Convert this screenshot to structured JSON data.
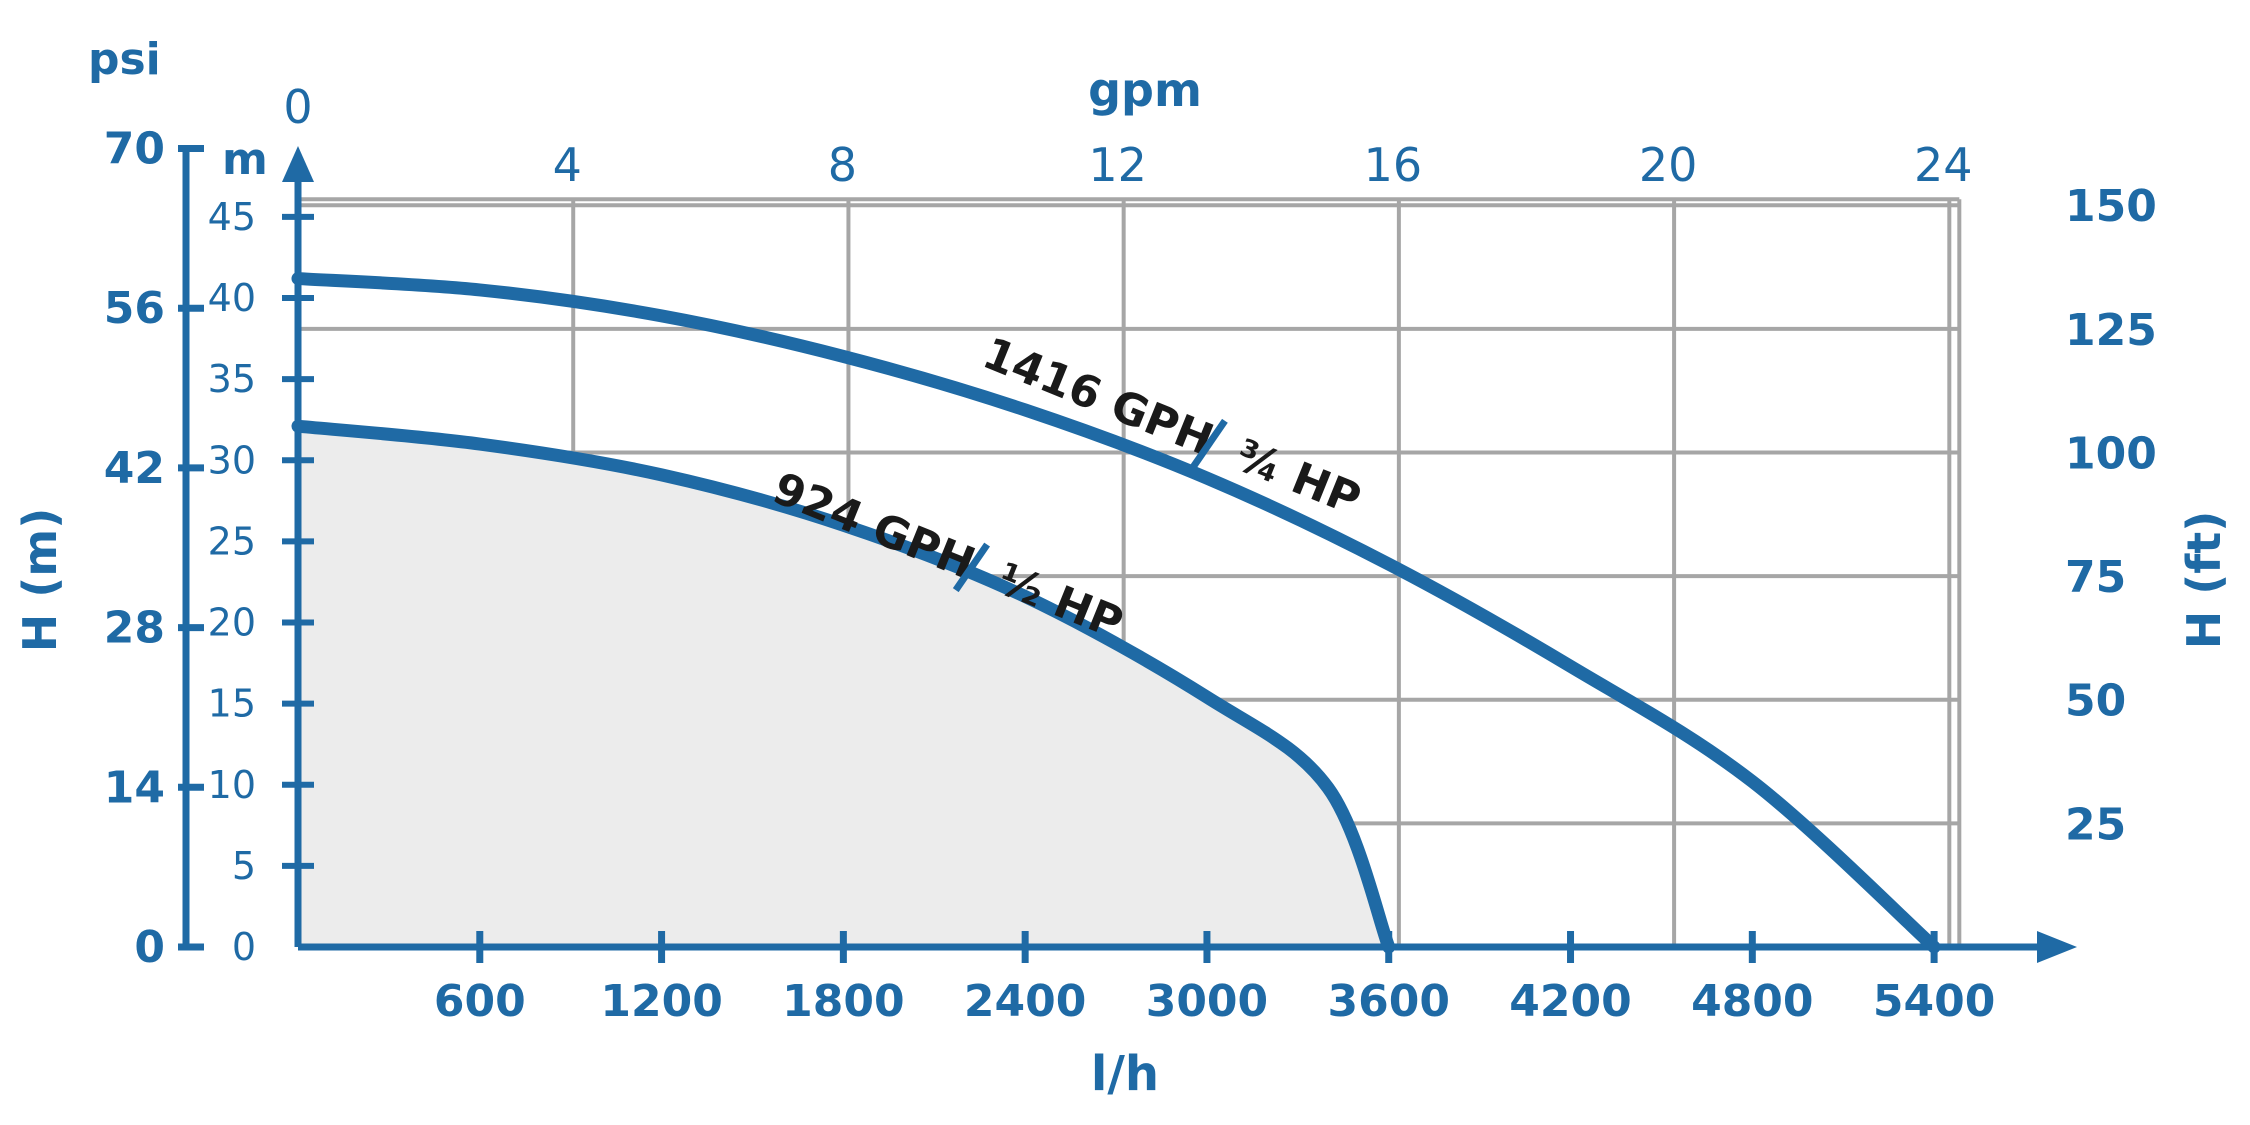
{
  "chart_data": {
    "type": "line",
    "colors": {
      "axis": "#1f6aa5",
      "curve": "#1f6aa5",
      "grid": "#a6a6a6",
      "fill": "#ececec",
      "label": "#1a1a1a"
    },
    "x_axis": {
      "label": "l/h",
      "ticks": [
        600,
        1200,
        1800,
        2400,
        3000,
        3600,
        4200,
        4800,
        5400
      ],
      "range": [
        0,
        5700
      ]
    },
    "x2_axis": {
      "label": "gpm",
      "ticks": [
        0,
        4,
        8,
        12,
        16,
        20,
        24
      ],
      "range": [
        0,
        25.1
      ]
    },
    "y_axis_m": {
      "unit": "m",
      "label": "H (m)",
      "ticks": [
        0,
        5,
        10,
        15,
        20,
        25,
        30,
        35,
        40,
        45
      ],
      "range": [
        0,
        49
      ]
    },
    "y_axis_psi": {
      "unit": "psi",
      "ticks": [
        0,
        14,
        28,
        42,
        56,
        70
      ]
    },
    "y_axis_ft": {
      "label": "H (ft)",
      "ticks": [
        25,
        50,
        75,
        100,
        125,
        150
      ]
    },
    "grid": true,
    "series": [
      {
        "name_main": "1416 GPH",
        "name_power": "¾ HP",
        "points": [
          [
            0,
            41.2
          ],
          [
            600,
            40.5
          ],
          [
            1200,
            38.9
          ],
          [
            1800,
            36.4
          ],
          [
            2400,
            33.1
          ],
          [
            3000,
            28.9
          ],
          [
            3600,
            23.6
          ],
          [
            4200,
            17.3
          ],
          [
            4800,
            10.2
          ],
          [
            5400,
            0
          ]
        ]
      },
      {
        "name_main": "924 GPH",
        "name_power": "½ HP",
        "points": [
          [
            0,
            32.1
          ],
          [
            600,
            31.0
          ],
          [
            1200,
            29.1
          ],
          [
            1800,
            26.0
          ],
          [
            2400,
            21.6
          ],
          [
            3000,
            15.4
          ],
          [
            3400,
            9.8
          ],
          [
            3600,
            0
          ]
        ]
      }
    ]
  }
}
